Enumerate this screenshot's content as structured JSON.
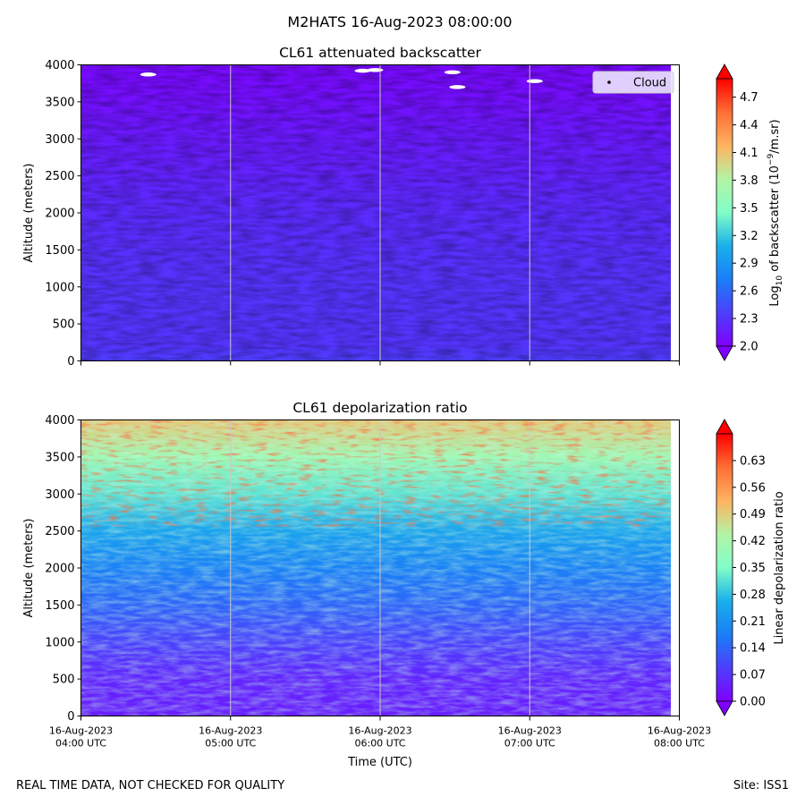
{
  "figure": {
    "suptitle": "M2HATS 16-Aug-2023 08:00:00",
    "footer_left": "REAL TIME DATA, NOT CHECKED FOR QUALITY",
    "footer_right": "Site: ISS1"
  },
  "chart_data": [
    {
      "type": "heatmap",
      "title": "CL61 attenuated backscatter",
      "ylabel": "Altitude (meters)",
      "xlabel": "",
      "x_range": [
        "16-Aug-2023 04:00 UTC",
        "16-Aug-2023 08:00 UTC"
      ],
      "ylim": [
        0,
        4000
      ],
      "y_ticks": [
        0,
        500,
        1000,
        1500,
        2000,
        2500,
        3000,
        3500,
        4000
      ],
      "x_tick_labels": [],
      "vertical_gridlines_at": [
        "05:00",
        "06:00",
        "07:00"
      ],
      "colormap": "rainbow",
      "colorbar": {
        "label_parts": {
          "pre": "Log",
          "sub": "10",
          "mid": " of backscatter (10",
          "sup": "−9",
          "post": "/m.sr)"
        },
        "range": [
          2.0,
          4.9
        ],
        "ticks": [
          "2.0",
          "2.3",
          "2.6",
          "2.9",
          "3.2",
          "3.5",
          "3.8",
          "4.1",
          "4.4",
          "4.7"
        ],
        "extend": "both"
      },
      "legend": {
        "entries": [
          "Cloud"
        ],
        "placement": "top-right"
      },
      "profile": [
        {
          "alt": 0,
          "value": 2.35
        },
        {
          "alt": 200,
          "value": 2.3
        },
        {
          "alt": 1000,
          "value": 2.3
        },
        {
          "alt": 2000,
          "value": 2.25
        },
        {
          "alt": 3000,
          "value": 2.15
        },
        {
          "alt": 3600,
          "value": 2.08
        },
        {
          "alt": 4000,
          "value": 2.05
        }
      ],
      "cloud_points": [
        {
          "time": "04:27",
          "alt": 3870
        },
        {
          "time": "05:53",
          "alt": 3920
        },
        {
          "time": "05:58",
          "alt": 3930
        },
        {
          "time": "06:29",
          "alt": 3900
        },
        {
          "time": "06:31",
          "alt": 3700
        },
        {
          "time": "07:02",
          "alt": 3780
        }
      ]
    },
    {
      "type": "heatmap",
      "title": "CL61 depolarization ratio",
      "ylabel": "Altitude (meters)",
      "xlabel": "Time (UTC)",
      "x_range": [
        "16-Aug-2023 04:00 UTC",
        "16-Aug-2023 08:00 UTC"
      ],
      "ylim": [
        0,
        4000
      ],
      "y_ticks": [
        0,
        500,
        1000,
        1500,
        2000,
        2500,
        3000,
        3500,
        4000
      ],
      "x_tick_labels": [
        {
          "date": "16-Aug-2023",
          "time": "04:00 UTC"
        },
        {
          "date": "16-Aug-2023",
          "time": "05:00 UTC"
        },
        {
          "date": "16-Aug-2023",
          "time": "06:00 UTC"
        },
        {
          "date": "16-Aug-2023",
          "time": "07:00 UTC"
        },
        {
          "date": "16-Aug-2023",
          "time": "08:00 UTC"
        }
      ],
      "vertical_gridlines_at": [
        "05:00",
        "06:00",
        "07:00"
      ],
      "colormap": "rainbow",
      "colorbar": {
        "label": "Linear depolarization ratio",
        "range": [
          0.0,
          0.7
        ],
        "ticks": [
          "0.00",
          "0.07",
          "0.14",
          "0.21",
          "0.28",
          "0.35",
          "0.42",
          "0.49",
          "0.56",
          "0.63"
        ],
        "extend": "both"
      },
      "profile": [
        {
          "alt": 0,
          "value": 0.04
        },
        {
          "alt": 500,
          "value": 0.05
        },
        {
          "alt": 1000,
          "value": 0.09
        },
        {
          "alt": 1500,
          "value": 0.14
        },
        {
          "alt": 2000,
          "value": 0.18
        },
        {
          "alt": 2500,
          "value": 0.24
        },
        {
          "alt": 3000,
          "value": 0.32
        },
        {
          "alt": 3500,
          "value": 0.4
        },
        {
          "alt": 4000,
          "value": 0.5
        }
      ]
    }
  ]
}
